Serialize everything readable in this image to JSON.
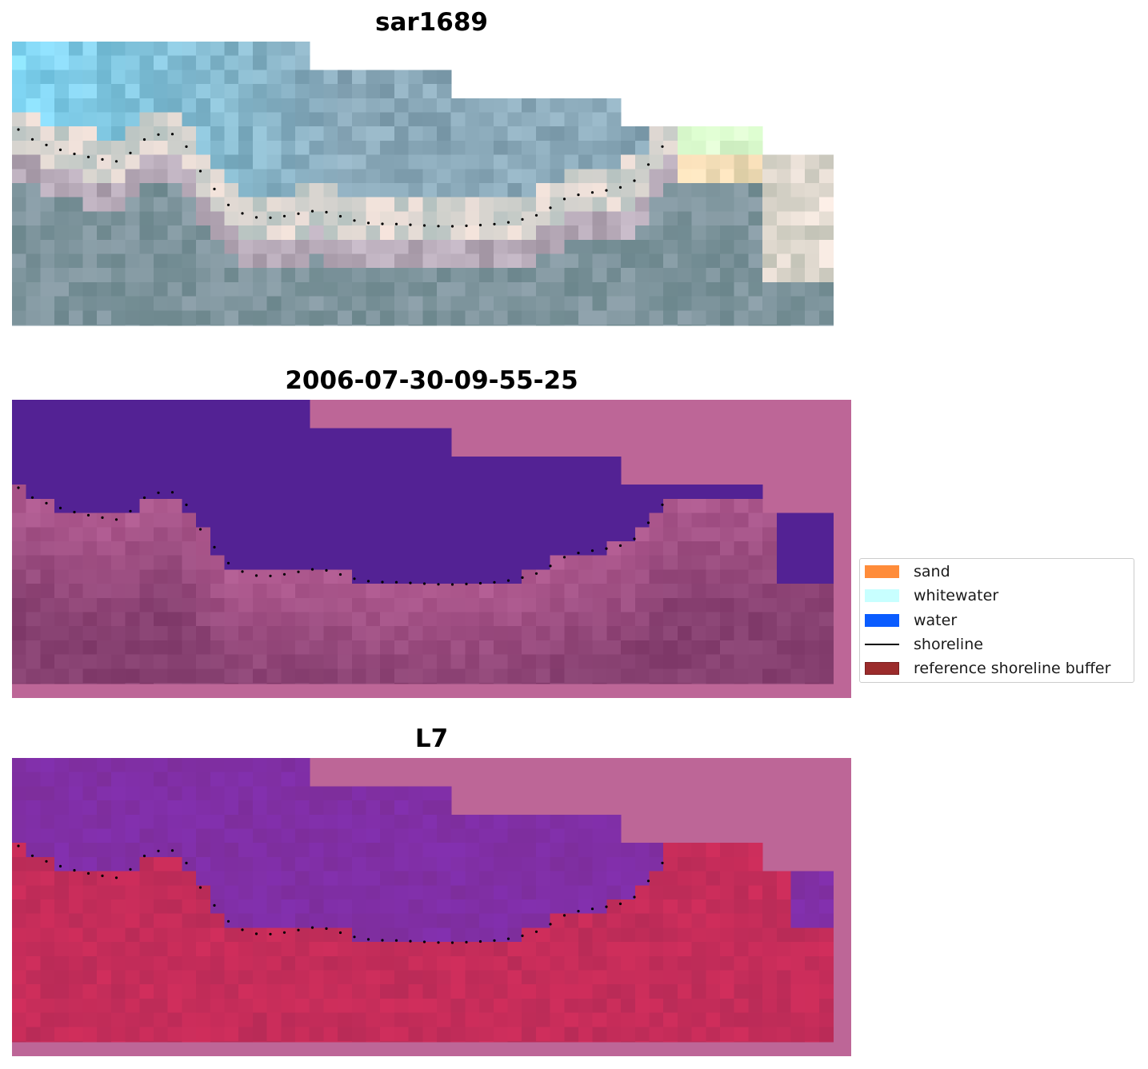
{
  "panels": [
    {
      "title": "sar1689"
    },
    {
      "title": "2006-07-30-09-55-25"
    },
    {
      "title": "L7"
    }
  ],
  "legend": {
    "items": [
      {
        "label": "sand",
        "color": "#ff8c3a",
        "kind": "patch"
      },
      {
        "label": "whitewater",
        "color": "#c8ffff",
        "kind": "patch"
      },
      {
        "label": "water",
        "color": "#0a5cff",
        "kind": "patch"
      },
      {
        "label": "shoreline",
        "color": "#000000",
        "kind": "line"
      },
      {
        "label": "reference shoreline buffer",
        "color": "#9b2b2b",
        "kind": "patch-outline"
      }
    ]
  },
  "colors": {
    "rgb_sky": "#7fc9e6",
    "rgb_ground": "#7f9a94",
    "class_water_purple": "#532294",
    "class_land_pink": "#bd6697",
    "class_land_dark": "#864070",
    "ndwi_purple": "#7a2a9e",
    "ndwi_red": "#c21f4d",
    "buffer_pink": "#bd6697"
  }
}
